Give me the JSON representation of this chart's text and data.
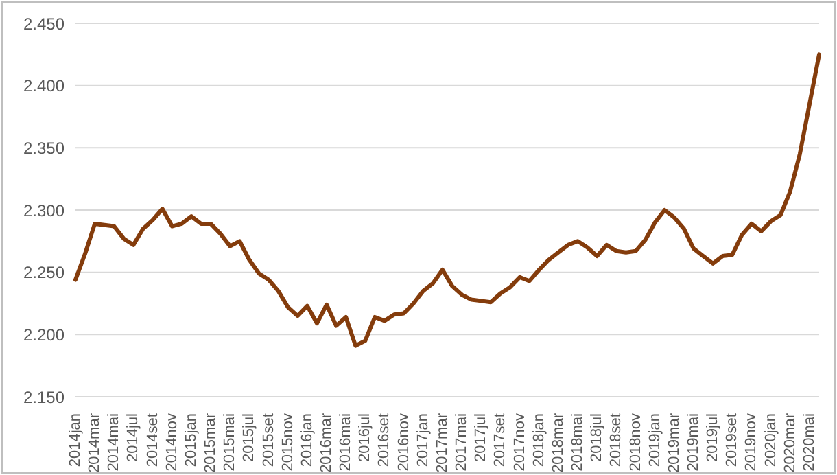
{
  "chart_data": {
    "type": "line",
    "categories": [
      "2014jan",
      null,
      "2014mar",
      null,
      "2014mai",
      null,
      "2014jul",
      null,
      "2014set",
      null,
      "2014nov",
      null,
      "2015jan",
      null,
      "2015mar",
      null,
      "2015mai",
      null,
      "2015jul",
      null,
      "2015set",
      null,
      "2015nov",
      null,
      "2016jan",
      null,
      "2016mar",
      null,
      "2016mai",
      null,
      "2016jul",
      null,
      "2016set",
      null,
      "2016nov",
      null,
      "2017jan",
      null,
      "2017mar",
      null,
      "2017mai",
      null,
      "2017jul",
      null,
      "2017set",
      null,
      "2017nov",
      null,
      "2018jan",
      null,
      "2018mar",
      null,
      "2018mai",
      null,
      "2018jul",
      null,
      "2018set",
      null,
      "2018nov",
      null,
      "2019jan",
      null,
      "2019mar",
      null,
      "2019mai",
      null,
      "2019jul",
      null,
      "2019set",
      null,
      "2019nov",
      null,
      "2020jan",
      null,
      "2020mar",
      null,
      "2020mai",
      null
    ],
    "series": [
      {
        "color": "#843c0c",
        "values": [
          2.244,
          2.265,
          2.289,
          2.288,
          2.287,
          2.277,
          2.272,
          2.285,
          2.292,
          2.301,
          2.287,
          2.289,
          2.295,
          2.289,
          2.289,
          2.281,
          2.271,
          2.275,
          2.26,
          2.249,
          2.244,
          2.235,
          2.222,
          2.215,
          2.223,
          2.209,
          2.224,
          2.207,
          2.214,
          2.191,
          2.195,
          2.214,
          2.211,
          2.216,
          2.217,
          2.225,
          2.235,
          2.241,
          2.252,
          2.239,
          2.232,
          2.228,
          2.227,
          2.226,
          2.233,
          2.238,
          2.246,
          2.243,
          2.252,
          2.26,
          2.266,
          2.272,
          2.275,
          2.27,
          2.263,
          2.272,
          2.267,
          2.266,
          2.267,
          2.276,
          2.29,
          2.3,
          2.294,
          2.285,
          2.269,
          2.263,
          2.257,
          2.263,
          2.264,
          2.28,
          2.289,
          2.283,
          2.291,
          2.296,
          2.315,
          2.345,
          2.385,
          2.425
        ]
      }
    ],
    "ylim": [
      2.15,
      2.45
    ],
    "yticks": [
      {
        "value": 2.15,
        "label": "2.150"
      },
      {
        "value": 2.2,
        "label": "2.200"
      },
      {
        "value": 2.25,
        "label": "2.250"
      },
      {
        "value": 2.3,
        "label": "2.300"
      },
      {
        "value": 2.35,
        "label": "2.350"
      },
      {
        "value": 2.4,
        "label": "2.400"
      },
      {
        "value": 2.45,
        "label": "2.450"
      }
    ],
    "grid": "y",
    "legend": false,
    "marker": "none",
    "line_style": "solid"
  }
}
